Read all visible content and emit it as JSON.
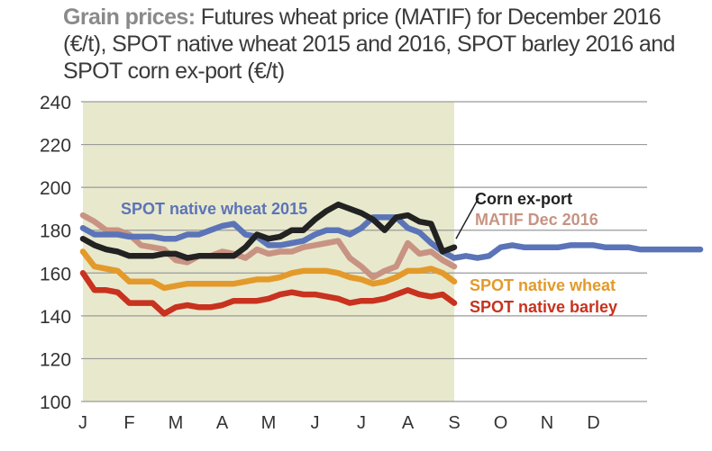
{
  "title": {
    "lead": "Grain prices:",
    "text": "Futures wheat price (MATIF) for December 2016 (€/t), SPOT native wheat 2015 and 2016, SPOT barley 2016 and SPOT corn ex-port (€/t)"
  },
  "colors": {
    "shaded_region": "#e8e8cd",
    "grid": "#9a9a9a",
    "spot_wheat_2015": "#5b74b8",
    "corn_export": "#222222",
    "matif_dec_2016": "#c89382",
    "spot_native_wheat": "#e39a2a",
    "spot_native_barley": "#c8321e"
  },
  "chart_data": {
    "type": "line",
    "ylim": [
      100,
      240
    ],
    "yticks": [
      100,
      120,
      140,
      160,
      180,
      200,
      220,
      240
    ],
    "xlim": [
      0,
      13.3
    ],
    "month_labels": [
      {
        "label": "J",
        "x": 0
      },
      {
        "label": "F",
        "x": 1
      },
      {
        "label": "M",
        "x": 2
      },
      {
        "label": "A",
        "x": 3
      },
      {
        "label": "M",
        "x": 4
      },
      {
        "label": "J",
        "x": 5
      },
      {
        "label": "J",
        "x": 6
      },
      {
        "label": "A",
        "x": 7
      },
      {
        "label": "S",
        "x": 8
      },
      {
        "label": "O",
        "x": 9
      },
      {
        "label": "N",
        "x": 10
      },
      {
        "label": "D",
        "x": 11
      }
    ],
    "shaded_until_x": 8,
    "series": [
      {
        "name": "SPOT native wheat 2015",
        "key": "spot_wheat_2015",
        "x": [
          0,
          0.25,
          0.5,
          0.75,
          1,
          1.25,
          1.5,
          1.75,
          2,
          2.25,
          2.5,
          2.75,
          3,
          3.25,
          3.5,
          3.75,
          4,
          4.25,
          4.5,
          4.75,
          5,
          5.25,
          5.5,
          5.75,
          6,
          6.25,
          6.5,
          6.75,
          7,
          7.25,
          7.5,
          7.75,
          8,
          8.25,
          8.5,
          8.75,
          9,
          9.25,
          9.5,
          9.75,
          10,
          10.25,
          10.5,
          10.75,
          11,
          11.25,
          11.5,
          11.75,
          12,
          12.25,
          12.5,
          12.75,
          13,
          13.3
        ],
        "values": [
          181,
          178,
          178,
          178,
          177,
          177,
          177,
          176,
          176,
          178,
          178,
          180,
          182,
          183,
          178,
          177,
          173,
          173,
          174,
          175,
          178,
          180,
          180,
          178,
          181,
          186,
          186,
          186,
          181,
          179,
          174,
          170,
          167,
          168,
          167,
          168,
          172,
          173,
          172,
          172,
          172,
          172,
          173,
          173,
          173,
          172,
          172,
          172,
          171,
          171,
          171,
          171,
          171,
          171
        ]
      },
      {
        "name": "Corn ex-port",
        "key": "corn_export",
        "x": [
          0,
          0.25,
          0.5,
          0.75,
          1,
          1.25,
          1.5,
          1.75,
          2,
          2.25,
          2.5,
          2.75,
          3,
          3.25,
          3.5,
          3.75,
          4,
          4.25,
          4.5,
          4.75,
          5,
          5.25,
          5.5,
          5.75,
          6,
          6.25,
          6.5,
          6.75,
          7,
          7.25,
          7.5,
          7.75,
          8
        ],
        "values": [
          176,
          173,
          171,
          170,
          168,
          168,
          168,
          169,
          169,
          167,
          168,
          168,
          168,
          168,
          172,
          178,
          176,
          177,
          180,
          180,
          185,
          189,
          192,
          190,
          188,
          185,
          180,
          186,
          187,
          184,
          183,
          170,
          172
        ]
      },
      {
        "name": "MATIF Dec 2016",
        "key": "matif_dec_2016",
        "x": [
          0,
          0.25,
          0.5,
          0.75,
          1,
          1.25,
          1.5,
          1.75,
          2,
          2.25,
          2.5,
          2.75,
          3,
          3.25,
          3.5,
          3.75,
          4,
          4.25,
          4.5,
          4.75,
          5,
          5.25,
          5.5,
          5.75,
          6,
          6.25,
          6.5,
          6.75,
          7,
          7.25,
          7.5,
          7.75,
          8
        ],
        "values": [
          187,
          184,
          180,
          180,
          178,
          173,
          172,
          171,
          166,
          165,
          168,
          168,
          170,
          169,
          167,
          171,
          169,
          170,
          170,
          172,
          173,
          174,
          175,
          167,
          163,
          158,
          161,
          163,
          174,
          169,
          170,
          166,
          163
        ]
      },
      {
        "name": "SPOT native wheat",
        "key": "spot_native_wheat",
        "x": [
          0,
          0.25,
          0.5,
          0.75,
          1,
          1.25,
          1.5,
          1.75,
          2,
          2.25,
          2.5,
          2.75,
          3,
          3.25,
          3.5,
          3.75,
          4,
          4.25,
          4.5,
          4.75,
          5,
          5.25,
          5.5,
          5.75,
          6,
          6.25,
          6.5,
          6.75,
          7,
          7.25,
          7.5,
          7.75,
          8
        ],
        "values": [
          170,
          163,
          162,
          161,
          156,
          156,
          156,
          153,
          154,
          155,
          155,
          155,
          155,
          155,
          156,
          157,
          157,
          158,
          160,
          161,
          161,
          161,
          160,
          158,
          157,
          155,
          156,
          158,
          161,
          161,
          162,
          160,
          156
        ]
      },
      {
        "name": "SPOT native barley",
        "key": "spot_native_barley",
        "x": [
          0,
          0.25,
          0.5,
          0.75,
          1,
          1.25,
          1.5,
          1.75,
          2,
          2.25,
          2.5,
          2.75,
          3,
          3.25,
          3.5,
          3.75,
          4,
          4.25,
          4.5,
          4.75,
          5,
          5.25,
          5.5,
          5.75,
          6,
          6.25,
          6.5,
          6.75,
          7,
          7.25,
          7.5,
          7.75,
          8
        ],
        "values": [
          160,
          152,
          152,
          151,
          146,
          146,
          146,
          141,
          144,
          145,
          144,
          144,
          145,
          147,
          147,
          147,
          148,
          150,
          151,
          150,
          150,
          149,
          148,
          146,
          147,
          147,
          148,
          150,
          152,
          150,
          149,
          150,
          146
        ]
      }
    ],
    "annotations": [
      {
        "text": "SPOT native wheat 2015",
        "key": "spot_wheat_2015"
      },
      {
        "text": "Corn ex-port",
        "key": "corn_export"
      },
      {
        "text": "MATIF Dec 2016",
        "key": "matif_dec_2016"
      },
      {
        "text": "SPOT native wheat",
        "key": "spot_native_wheat"
      },
      {
        "text": "SPOT native barley",
        "key": "spot_native_barley"
      }
    ]
  }
}
